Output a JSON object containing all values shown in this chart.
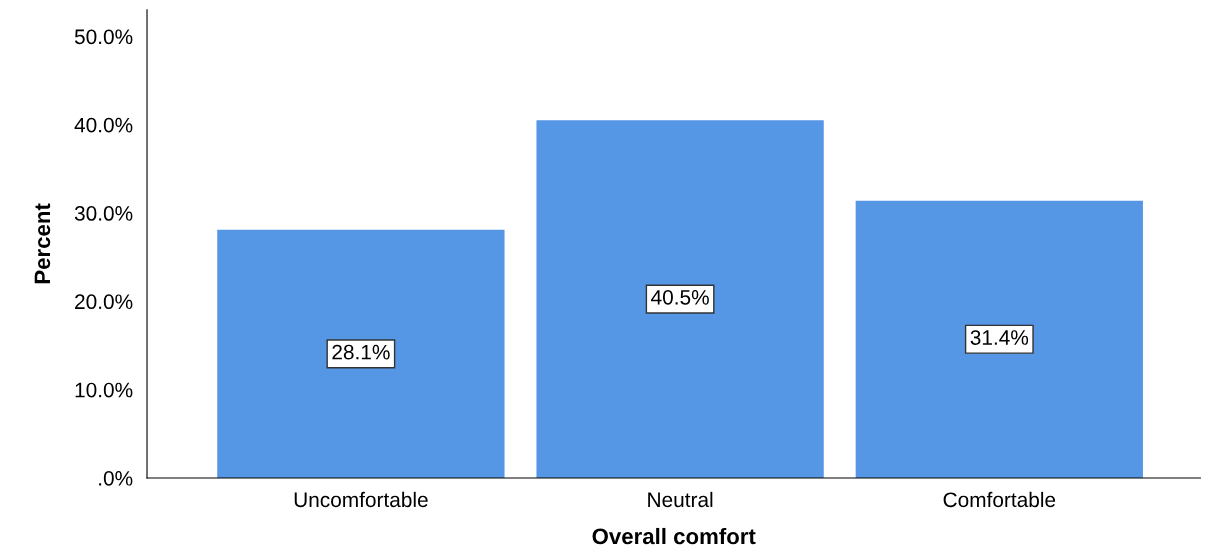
{
  "chart_data": {
    "type": "bar",
    "xlabel": "Overall comfort",
    "ylabel": "Percent",
    "categories": [
      "Uncomfortable",
      "Neutral",
      "Comfortable"
    ],
    "values": [
      28.1,
      40.5,
      31.4
    ],
    "color": "#5596e5",
    "value_labels": [
      "28.1%",
      "40.5%",
      "31.4%"
    ],
    "ylim": [
      0,
      53
    ],
    "yticks": [
      {
        "value": 0,
        "label": ".0%"
      },
      {
        "value": 10,
        "label": "10.0%"
      },
      {
        "value": 20,
        "label": "20.0%"
      },
      {
        "value": 30,
        "label": "30.0%"
      },
      {
        "value": 40,
        "label": "40.0%"
      },
      {
        "value": 50,
        "label": "50.0%"
      }
    ],
    "grid": false,
    "legend": false
  }
}
